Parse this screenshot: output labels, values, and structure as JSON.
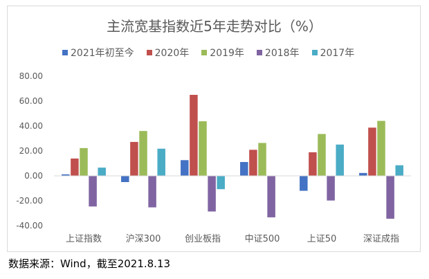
{
  "chart_data": {
    "type": "bar",
    "title": "主流宽基指数近5年走势对比（%）",
    "categories": [
      "上证指数",
      "沪深300",
      "创业板指",
      "中证500",
      "上证50",
      "深证成指"
    ],
    "series": [
      {
        "name": "2021年初至今",
        "color": "#4472c4",
        "values": [
          1.2,
          -5,
          12.6,
          11.1,
          -12,
          2.3
        ]
      },
      {
        "name": "2020年",
        "color": "#c0504d",
        "values": [
          13.9,
          27.2,
          65,
          20.9,
          18.9,
          38.7
        ]
      },
      {
        "name": "2019年",
        "color": "#9bbb59",
        "values": [
          22.3,
          36,
          43.8,
          26.4,
          33.6,
          44.1
        ]
      },
      {
        "name": "2018年",
        "color": "#8064a2",
        "values": [
          -24.6,
          -25.3,
          -28.6,
          -33.3,
          -19.8,
          -34.4
        ]
      },
      {
        "name": "2017年",
        "color": "#4bacc6",
        "values": [
          6.6,
          21.8,
          -10.7,
          0,
          25.1,
          8.5
        ]
      }
    ],
    "ylim": [
      -40,
      80
    ],
    "yticks": [
      "-40.00",
      "-20.00",
      "0.00",
      "20.00",
      "40.00",
      "60.00",
      "80.00"
    ],
    "xlabel": "",
    "ylabel": "",
    "legend_position": "top",
    "grid": false
  },
  "source_note": "数据来源：Wind，截至2021.8.13"
}
